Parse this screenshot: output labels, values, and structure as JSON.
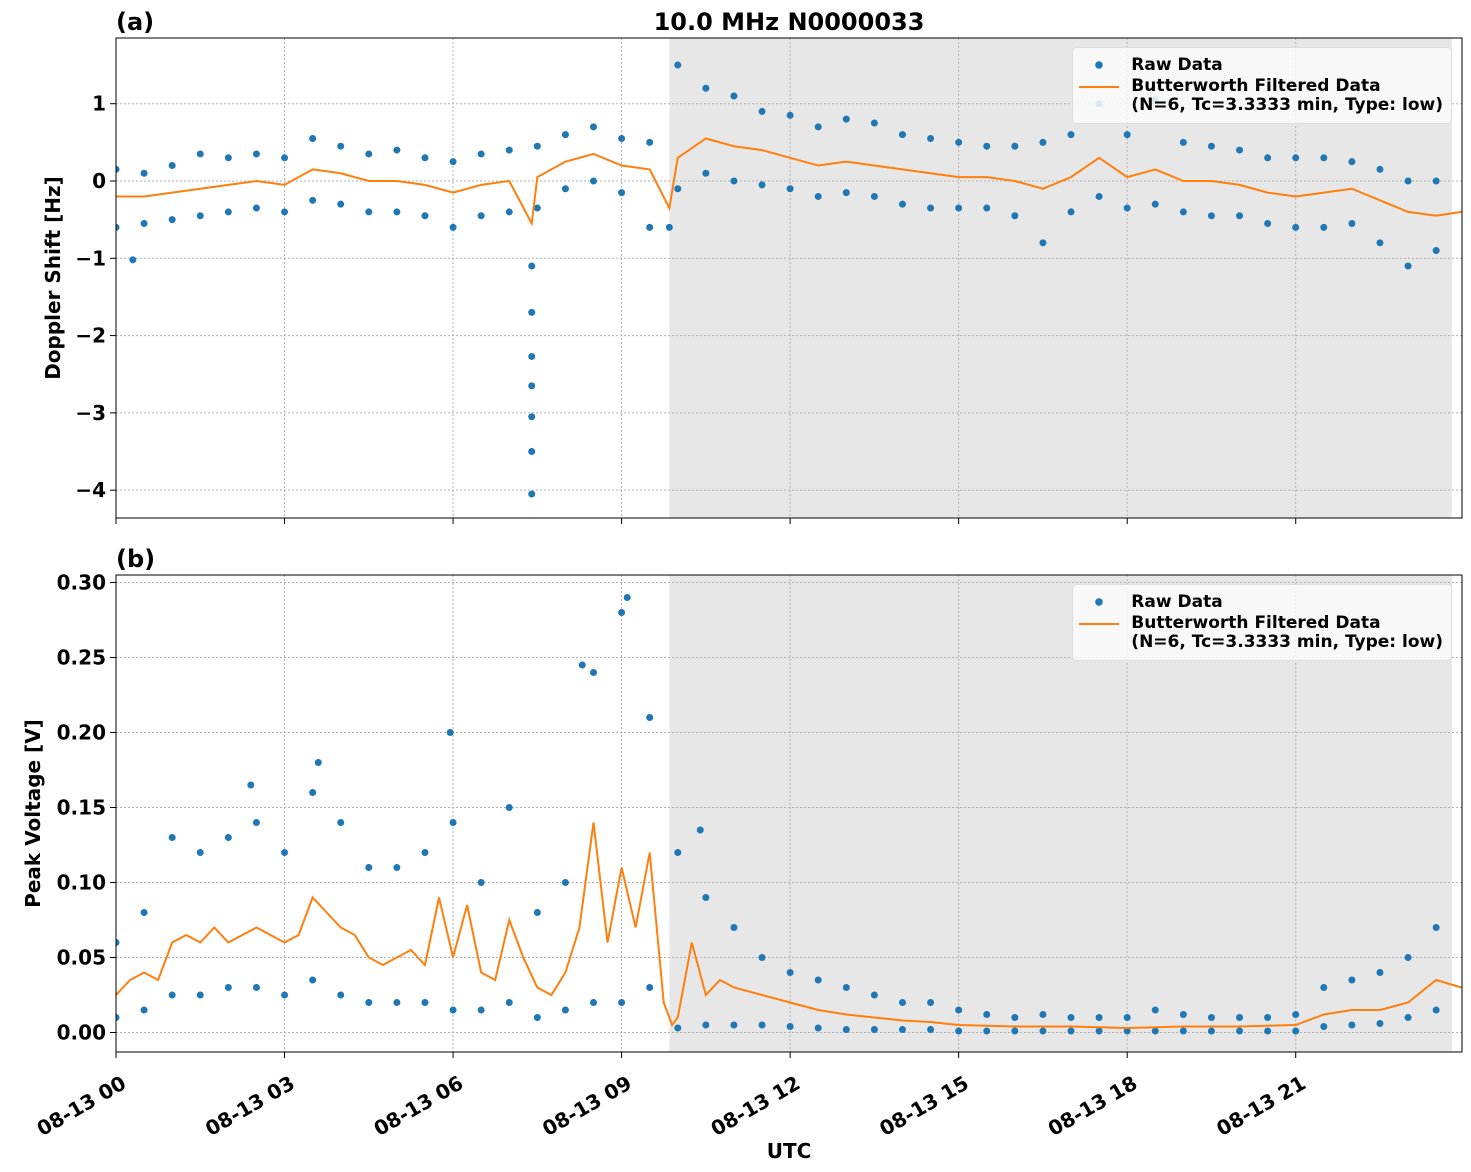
{
  "chart_data": [
    {
      "type": "scatter+line",
      "title": "10.0 MHz N0000033",
      "panel_label": "(a)",
      "ylabel": "Doppler Shift [Hz]",
      "xlim": [
        0,
        23.96
      ],
      "ylim": [
        -4.36,
        1.85
      ],
      "yticks": [
        {
          "value": -4,
          "label": "−4"
        },
        {
          "value": -3,
          "label": "−3"
        },
        {
          "value": -2,
          "label": "−2"
        },
        {
          "value": -1,
          "label": "−1"
        },
        0,
        1
      ],
      "grid": true,
      "shaded_span": [
        9.85,
        23.78
      ],
      "shade_color": "#e7e7e7",
      "legend": "upper right",
      "series": [
        {
          "name": "Raw Data",
          "type": "scatter",
          "color": "#1f77b4",
          "x": [
            0,
            0,
            0.5,
            0.5,
            1,
            1,
            1.5,
            1.5,
            2,
            2,
            2.5,
            2.5,
            3,
            3,
            3.5,
            3.5,
            4,
            4,
            4.5,
            4.5,
            5,
            5,
            5.5,
            5.5,
            6,
            6,
            6.5,
            6.5,
            7,
            7,
            7.5,
            7.5,
            8,
            8,
            8.5,
            8.5,
            9,
            9,
            9.5,
            9.5,
            10,
            10,
            10.5,
            10.5,
            11,
            11,
            11.5,
            11.5,
            12,
            12,
            12.5,
            12.5,
            13,
            13,
            13.5,
            13.5,
            14,
            14,
            14.5,
            14.5,
            15,
            15,
            15.5,
            15.5,
            16,
            16,
            16.5,
            16.5,
            17,
            17,
            17.5,
            17.5,
            18,
            18,
            18.5,
            18.5,
            19,
            19,
            19.5,
            19.5,
            20,
            20,
            20.5,
            20.5,
            21,
            21,
            21.5,
            21.5,
            22,
            22,
            22.5,
            22.5,
            23,
            23,
            23.5,
            23.5,
            0.3,
            7.4,
            7.4,
            7.4,
            7.4,
            7.4,
            7.4,
            7.4,
            9.85
          ],
          "values": [
            0.15,
            -0.6,
            0.1,
            -0.55,
            0.2,
            -0.5,
            0.35,
            -0.45,
            0.3,
            -0.4,
            0.35,
            -0.35,
            0.3,
            -0.4,
            0.55,
            -0.25,
            0.45,
            -0.3,
            0.35,
            -0.4,
            0.4,
            -0.4,
            0.3,
            -0.45,
            0.25,
            -0.6,
            0.35,
            -0.45,
            0.4,
            -0.4,
            0.45,
            -0.35,
            0.6,
            -0.1,
            0.7,
            0.0,
            0.55,
            -0.15,
            0.5,
            -0.6,
            1.5,
            -0.1,
            1.2,
            0.1,
            1.1,
            0.0,
            0.9,
            -0.05,
            0.85,
            -0.1,
            0.7,
            -0.2,
            0.8,
            -0.15,
            0.75,
            -0.2,
            0.6,
            -0.3,
            0.55,
            -0.35,
            0.5,
            -0.35,
            0.45,
            -0.35,
            0.45,
            -0.45,
            0.5,
            -0.8,
            0.6,
            -0.4,
            1.0,
            -0.2,
            0.6,
            -0.35,
            1.05,
            -0.3,
            0.5,
            -0.4,
            0.45,
            -0.45,
            0.4,
            -0.45,
            0.3,
            -0.55,
            0.3,
            -0.6,
            0.3,
            -0.6,
            0.25,
            -0.55,
            0.15,
            -0.8,
            0.0,
            -1.1,
            0.0,
            -0.9,
            -1.02,
            -1.1,
            -1.7,
            -2.27,
            -2.65,
            -3.05,
            -3.5,
            -4.05,
            -0.6
          ]
        },
        {
          "name": "Butterworth Filtered Data\n(N=6, Tc=3.3333 min, Type: low)",
          "type": "line",
          "color": "#ff7f0e",
          "x": [
            0,
            0.5,
            1,
            1.5,
            2,
            2.5,
            3,
            3.5,
            4,
            4.5,
            5,
            5.5,
            6,
            6.5,
            7,
            7.4,
            7.5,
            8,
            8.5,
            9,
            9.5,
            9.85,
            10,
            10.5,
            11,
            11.5,
            12,
            12.5,
            13,
            13.5,
            14,
            14.5,
            15,
            15.5,
            16,
            16.5,
            17,
            17.5,
            18,
            18.5,
            19,
            19.5,
            20,
            20.5,
            21,
            21.5,
            22,
            22.5,
            23,
            23.5,
            23.95
          ],
          "values": [
            -0.2,
            -0.2,
            -0.15,
            -0.1,
            -0.05,
            0,
            -0.05,
            0.15,
            0.1,
            0,
            0,
            -0.05,
            -0.15,
            -0.05,
            0,
            -0.55,
            0.05,
            0.25,
            0.35,
            0.2,
            0.15,
            -0.35,
            0.3,
            0.55,
            0.45,
            0.4,
            0.3,
            0.2,
            0.25,
            0.2,
            0.15,
            0.1,
            0.05,
            0.05,
            0,
            -0.1,
            0.05,
            0.3,
            0.05,
            0.15,
            0,
            0,
            -0.05,
            -0.15,
            -0.2,
            -0.15,
            -0.1,
            -0.25,
            -0.4,
            -0.45,
            -0.4
          ]
        }
      ]
    },
    {
      "type": "scatter+line",
      "panel_label": "(b)",
      "ylabel": "Peak Voltage [V]",
      "xlabel": "UTC",
      "xlim": [
        0,
        23.96
      ],
      "ylim": [
        -0.013,
        0.305
      ],
      "xticks": [
        {
          "value": 0,
          "label": "08-13 00"
        },
        {
          "value": 3,
          "label": "08-13 03"
        },
        {
          "value": 6,
          "label": "08-13 06"
        },
        {
          "value": 9,
          "label": "08-13 09"
        },
        {
          "value": 12,
          "label": "08-13 12"
        },
        {
          "value": 15,
          "label": "08-13 15"
        },
        {
          "value": 18,
          "label": "08-13 18"
        },
        {
          "value": 21,
          "label": "08-13 21"
        }
      ],
      "yticks": [
        {
          "value": 0,
          "label": "0.00"
        },
        0.05,
        {
          "value": 0.1,
          "label": "0.10"
        },
        0.15,
        {
          "value": 0.2,
          "label": "0.20"
        },
        0.25,
        {
          "value": 0.3,
          "label": "0.30"
        }
      ],
      "grid": true,
      "shaded_span": [
        9.85,
        23.78
      ],
      "shade_color": "#e7e7e7",
      "legend": "upper right",
      "series": [
        {
          "name": "Raw Data",
          "type": "scatter",
          "color": "#1f77b4",
          "x": [
            0,
            0,
            0.5,
            0.5,
            1,
            1,
            1.5,
            1.5,
            2,
            2,
            2.5,
            2.5,
            3,
            3,
            3.5,
            3.5,
            4,
            4,
            4.5,
            4.5,
            5,
            5,
            5.5,
            5.5,
            6,
            6,
            6.5,
            6.5,
            7,
            7,
            7.5,
            7.5,
            8,
            8,
            8.5,
            8.5,
            9,
            9,
            9.5,
            9.5,
            10,
            10,
            10.5,
            10.5,
            11,
            11,
            11.5,
            11.5,
            12,
            12,
            12.5,
            12.5,
            13,
            13,
            13.5,
            13.5,
            14,
            14,
            14.5,
            14.5,
            15,
            15,
            15.5,
            15.5,
            16,
            16,
            16.5,
            16.5,
            17,
            17,
            17.5,
            17.5,
            18,
            18,
            18.5,
            18.5,
            19,
            19,
            19.5,
            19.5,
            20,
            20,
            20.5,
            20.5,
            21,
            21,
            21.5,
            21.5,
            22,
            22,
            22.5,
            22.5,
            23,
            23,
            23.5,
            23.5,
            2.4,
            3.6,
            5.95,
            9.1,
            8.3,
            10.4
          ],
          "values": [
            0.06,
            0.01,
            0.08,
            0.015,
            0.13,
            0.025,
            0.12,
            0.025,
            0.13,
            0.03,
            0.14,
            0.03,
            0.12,
            0.025,
            0.16,
            0.035,
            0.14,
            0.025,
            0.11,
            0.02,
            0.11,
            0.02,
            0.12,
            0.02,
            0.14,
            0.015,
            0.1,
            0.015,
            0.15,
            0.02,
            0.08,
            0.01,
            0.1,
            0.015,
            0.24,
            0.02,
            0.28,
            0.02,
            0.21,
            0.03,
            0.12,
            0.003,
            0.09,
            0.005,
            0.07,
            0.005,
            0.05,
            0.005,
            0.04,
            0.004,
            0.035,
            0.003,
            0.03,
            0.002,
            0.025,
            0.002,
            0.02,
            0.002,
            0.02,
            0.002,
            0.015,
            0.001,
            0.012,
            0.001,
            0.01,
            0.001,
            0.012,
            0.001,
            0.01,
            0.001,
            0.01,
            0.001,
            0.01,
            0.001,
            0.015,
            0.001,
            0.012,
            0.001,
            0.01,
            0.001,
            0.01,
            0.001,
            0.01,
            0.001,
            0.012,
            0.001,
            0.03,
            0.004,
            0.035,
            0.005,
            0.04,
            0.006,
            0.05,
            0.01,
            0.07,
            0.015,
            0.165,
            0.18,
            0.2,
            0.29,
            0.245,
            0.135
          ]
        },
        {
          "name": "Butterworth Filtered Data\n(N=6, Tc=3.3333 min, Type: low)",
          "type": "line",
          "color": "#ff7f0e",
          "x": [
            0,
            0.25,
            0.5,
            0.75,
            1,
            1.25,
            1.5,
            1.75,
            2,
            2.25,
            2.5,
            2.75,
            3,
            3.25,
            3.5,
            3.75,
            4,
            4.25,
            4.5,
            4.75,
            5,
            5.25,
            5.5,
            5.75,
            6,
            6.25,
            6.5,
            6.75,
            7,
            7.25,
            7.5,
            7.75,
            8,
            8.25,
            8.5,
            8.75,
            9,
            9.25,
            9.5,
            9.75,
            9.9,
            10,
            10.25,
            10.5,
            10.75,
            11,
            11.5,
            12,
            12.5,
            13,
            13.5,
            14,
            14.5,
            15,
            16,
            17,
            18,
            19,
            20,
            21,
            21.5,
            22,
            22.5,
            23,
            23.5,
            23.95
          ],
          "values": [
            0.025,
            0.035,
            0.04,
            0.035,
            0.06,
            0.065,
            0.06,
            0.07,
            0.06,
            0.065,
            0.07,
            0.065,
            0.06,
            0.065,
            0.09,
            0.08,
            0.07,
            0.065,
            0.05,
            0.045,
            0.05,
            0.055,
            0.045,
            0.09,
            0.05,
            0.085,
            0.04,
            0.035,
            0.075,
            0.05,
            0.03,
            0.025,
            0.04,
            0.07,
            0.14,
            0.06,
            0.11,
            0.07,
            0.12,
            0.02,
            0.005,
            0.01,
            0.06,
            0.025,
            0.035,
            0.03,
            0.025,
            0.02,
            0.015,
            0.012,
            0.01,
            0.008,
            0.007,
            0.005,
            0.004,
            0.004,
            0.003,
            0.004,
            0.004,
            0.005,
            0.012,
            0.015,
            0.015,
            0.02,
            0.035,
            0.03
          ]
        }
      ]
    }
  ]
}
